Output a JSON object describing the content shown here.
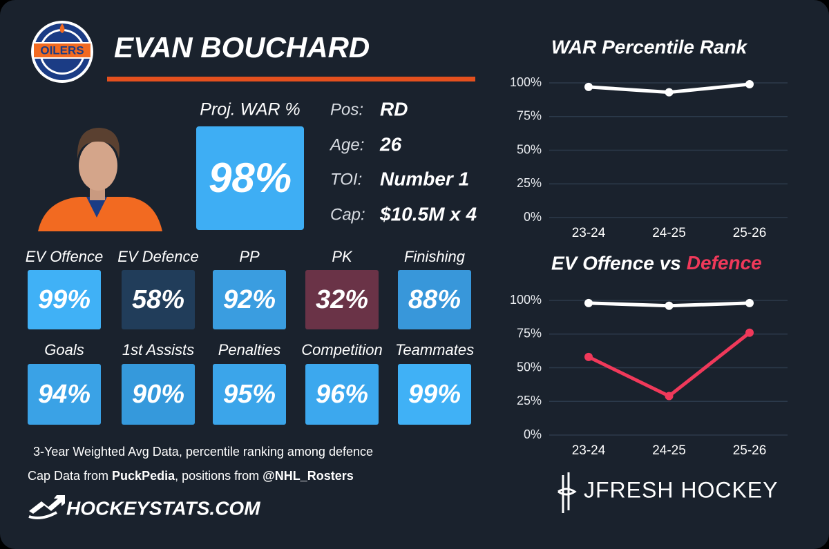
{
  "player": {
    "name": "EVAN BOUCHARD",
    "team_logo_text": "OILERS"
  },
  "proj_war": {
    "label": "Proj. WAR %",
    "value": 98,
    "value_label": "98%",
    "color": "#3eaef4"
  },
  "info": [
    {
      "label": "Pos:",
      "value": "RD"
    },
    {
      "label": "Age:",
      "value": 26
    },
    {
      "label": "TOI:",
      "value": "Number 1"
    },
    {
      "label": "Cap:",
      "value": "$10.5M x 4"
    }
  ],
  "tiles": [
    {
      "label": "EV Offence",
      "value": 99,
      "value_label": "99%",
      "color": "#40b1f6"
    },
    {
      "label": "EV Defence",
      "value": 58,
      "value_label": "58%",
      "color": "#213d5a"
    },
    {
      "label": "PP",
      "value": 92,
      "value_label": "92%",
      "color": "#3a9de0"
    },
    {
      "label": "PK",
      "value": 32,
      "value_label": "32%",
      "color": "#6a3347"
    },
    {
      "label": "Finishing",
      "value": 88,
      "value_label": "88%",
      "color": "#3897da"
    },
    {
      "label": "Goals",
      "value": 94,
      "value_label": "94%",
      "color": "#3aa2e6"
    },
    {
      "label": "1st Assists",
      "value": 90,
      "value_label": "90%",
      "color": "#3599dc"
    },
    {
      "label": "Penalties",
      "value": 95,
      "value_label": "95%",
      "color": "#3ba5ea"
    },
    {
      "label": "Competition",
      "value": 96,
      "value_label": "96%",
      "color": "#3ca8ee"
    },
    {
      "label": "Teammates",
      "value": 99,
      "value_label": "99%",
      "color": "#40b1f6"
    }
  ],
  "footer": {
    "note": "3-Year Weighted Avg Data, percentile ranking among defence",
    "source_prefix": "Cap Data from",
    "source_cap": "PuckPedia",
    "source_mid": ", positions from",
    "source_pos": "@NHL_Rosters",
    "site": "HOCKEYSTATS.COM",
    "brand": "JFRESH HOCKEY"
  },
  "chart_data": [
    {
      "type": "line",
      "title": "WAR Percentile Rank",
      "categories": [
        "23-24",
        "24-25",
        "25-26"
      ],
      "series": [
        {
          "color": "#ffffff",
          "values": [
            97,
            93,
            99
          ]
        }
      ],
      "ylim": [
        0,
        100
      ],
      "yticks": [
        {
          "value": 0,
          "label": "0%"
        },
        {
          "value": 25,
          "label": "25%"
        },
        {
          "value": 50,
          "label": "50%"
        },
        {
          "value": 75,
          "label": "75%"
        },
        {
          "value": 100,
          "label": "100%"
        }
      ],
      "grid": true
    },
    {
      "type": "line",
      "title": "EV Offence vs",
      "title_highlight": "Defence",
      "title_highlight_color": "#f0395a",
      "categories": [
        "23-24",
        "24-25",
        "25-26"
      ],
      "series": [
        {
          "color": "#ffffff",
          "values": [
            98,
            96,
            98
          ]
        },
        {
          "color": "#f0395a",
          "values": [
            58,
            29,
            76
          ]
        }
      ],
      "ylim": [
        0,
        100
      ],
      "yticks": [
        {
          "value": 0,
          "label": "0%"
        },
        {
          "value": 25,
          "label": "25%"
        },
        {
          "value": 50,
          "label": "50%"
        },
        {
          "value": 75,
          "label": "75%"
        },
        {
          "value": 100,
          "label": "100%"
        }
      ],
      "grid": true
    }
  ]
}
